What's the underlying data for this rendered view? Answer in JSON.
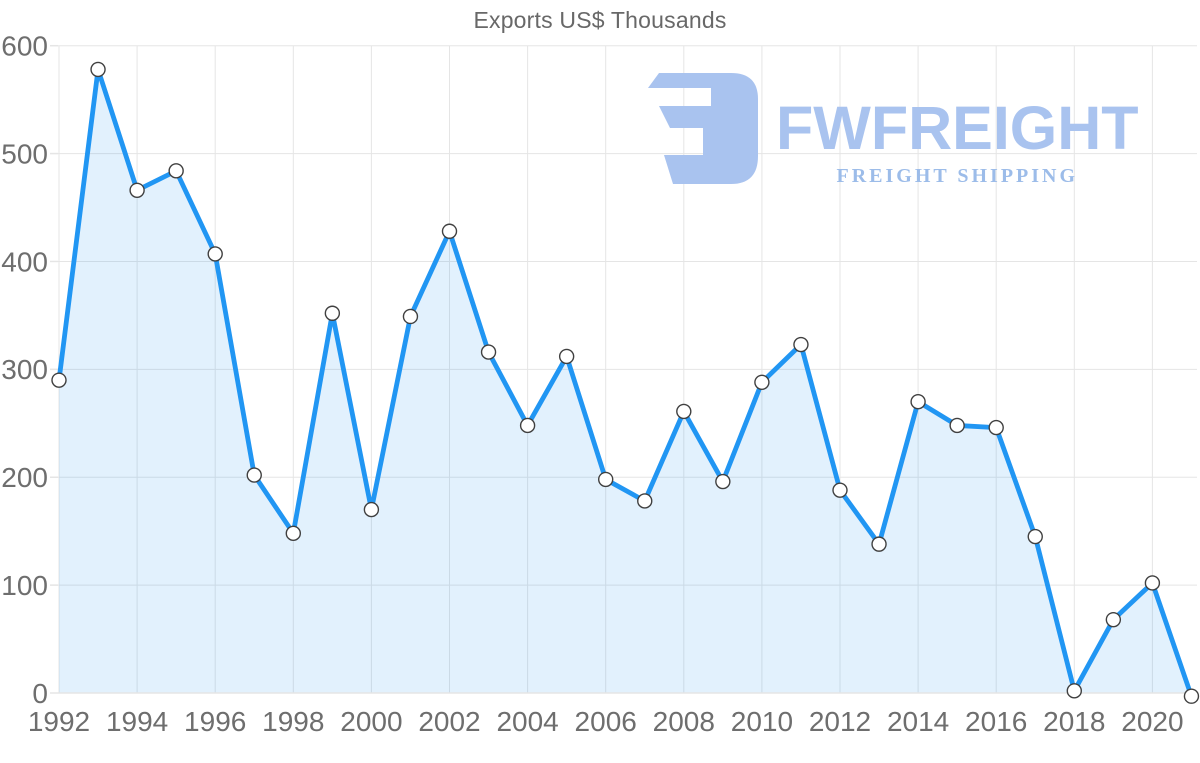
{
  "page": {
    "background": "#ffffff"
  },
  "logo": {
    "brand": "FWFREIGHT",
    "tagline": "FREIGHT SHIPPING",
    "icon": "fwfreight-f-icon",
    "icon_color": "#a9c3ef",
    "wordmark_color": "#a9c3ef",
    "tagline_color": "#9cbce9"
  },
  "chart_data": {
    "type": "area",
    "title": "Exports US$ Thousands",
    "xlabel": "",
    "ylabel": "",
    "x": [
      1992,
      1993,
      1994,
      1995,
      1996,
      1997,
      1998,
      1999,
      2000,
      2001,
      2002,
      2003,
      2004,
      2005,
      2006,
      2007,
      2008,
      2009,
      2010,
      2011,
      2012,
      2013,
      2014,
      2015,
      2016,
      2017,
      2018,
      2019,
      2020,
      2021
    ],
    "series": [
      {
        "name": "Exports US$ Thousands",
        "values": [
          290,
          578,
          466,
          484,
          407,
          202,
          148,
          352,
          170,
          349,
          428,
          316,
          248,
          312,
          198,
          178,
          261,
          196,
          288,
          323,
          188,
          138,
          270,
          248,
          246,
          145,
          2,
          68,
          102,
          -3
        ]
      }
    ],
    "ylim": [
      0,
      600
    ],
    "y_ticks": [
      0,
      100,
      200,
      300,
      400,
      500,
      600
    ],
    "x_tick_years": [
      1992,
      1994,
      1996,
      1998,
      2000,
      2002,
      2004,
      2006,
      2008,
      2010,
      2012,
      2014,
      2016,
      2018,
      2020
    ],
    "grid": true,
    "legend": "none",
    "line_color": "#2196f3",
    "fill_color": "rgba(33,150,243,0.13)",
    "grid_color": "#e5e5e5",
    "axis_text_color": "#6e6e6e",
    "title_color": "#686868",
    "marker_fill": "#ffffff",
    "marker_stroke": "#404040"
  }
}
